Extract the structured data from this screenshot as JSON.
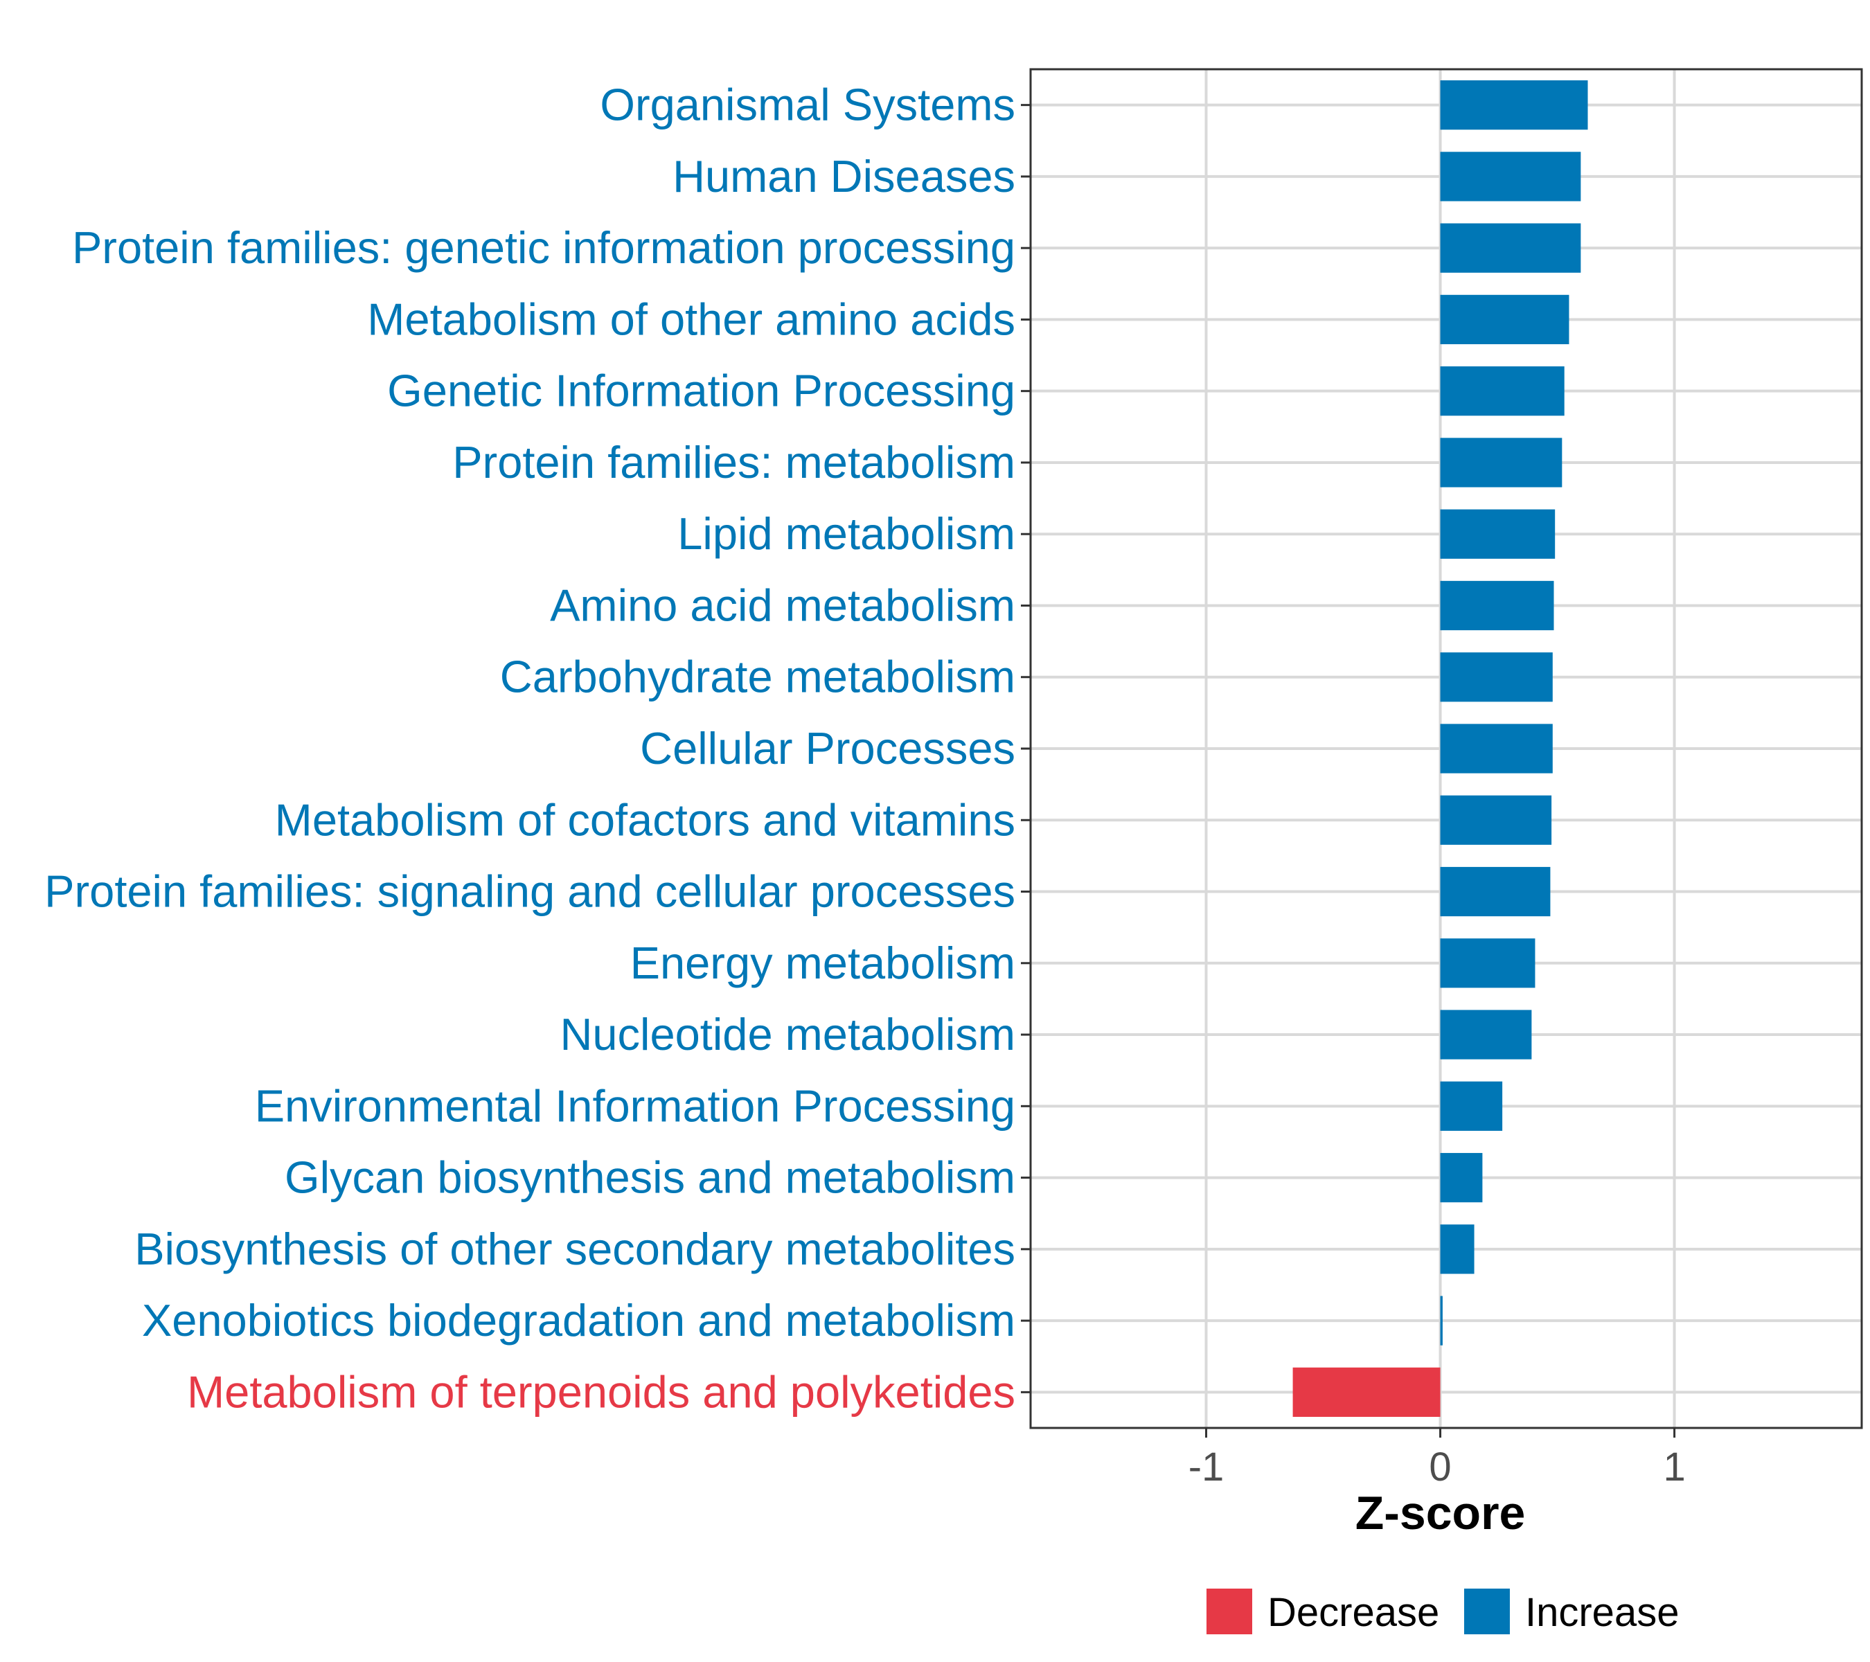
{
  "chart_data": {
    "type": "bar",
    "orientation": "horizontal",
    "xlabel": "Z-score",
    "ylabel": "",
    "xlim": [
      -1.75,
      1.8
    ],
    "xticks": [
      -1,
      0,
      1
    ],
    "xtick_labels": [
      "-1",
      "0",
      "1"
    ],
    "grid": true,
    "categories": [
      "Organismal Systems",
      "Human Diseases",
      "Protein families: genetic information processing",
      "Metabolism of other amino acids",
      "Genetic Information Processing",
      "Protein families: metabolism",
      "Lipid metabolism",
      "Amino acid metabolism",
      "Carbohydrate metabolism",
      "Cellular Processes",
      "Metabolism of cofactors and vitamins",
      "Protein families: signaling and cellular processes",
      "Energy metabolism",
      "Nucleotide metabolism",
      "Environmental Information Processing",
      "Glycan biosynthesis and metabolism",
      "Biosynthesis of other secondary metabolites",
      "Xenobiotics biodegradation and metabolism",
      "Metabolism of terpenoids and polyketides"
    ],
    "values": [
      0.63,
      0.6,
      0.6,
      0.55,
      0.53,
      0.52,
      0.49,
      0.485,
      0.48,
      0.48,
      0.475,
      0.47,
      0.405,
      0.39,
      0.265,
      0.18,
      0.145,
      0.01,
      -0.63
    ],
    "groups": [
      "Increase",
      "Increase",
      "Increase",
      "Increase",
      "Increase",
      "Increase",
      "Increase",
      "Increase",
      "Increase",
      "Increase",
      "Increase",
      "Increase",
      "Increase",
      "Increase",
      "Increase",
      "Increase",
      "Increase",
      "Increase",
      "Decrease"
    ],
    "legend": {
      "position": "bottom",
      "entries": [
        {
          "label": "Decrease",
          "color": "#E63946"
        },
        {
          "label": "Increase",
          "color": "#0077B6"
        }
      ]
    },
    "colors": {
      "Increase": "#0077B6",
      "Decrease": "#E63946"
    }
  }
}
